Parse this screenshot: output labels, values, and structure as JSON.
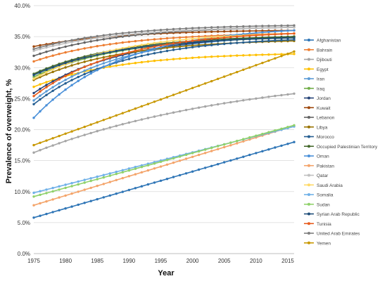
{
  "chart_data": {
    "type": "line",
    "xlabel": "Year",
    "ylabel": "Prevalence of overweight, %",
    "xlim": [
      1975,
      2016
    ],
    "ylim": [
      0,
      40
    ],
    "x_ticks": [
      1975,
      1980,
      1985,
      1990,
      1995,
      2000,
      2005,
      2010,
      2015
    ],
    "y_ticks": [
      "0.0%",
      "5.0%",
      "10.0%",
      "15.0%",
      "20.0%",
      "25.0%",
      "30.0%",
      "35.0%",
      "40.0%"
    ],
    "y_tick_values": [
      0,
      5,
      10,
      15,
      20,
      25,
      30,
      35,
      40
    ],
    "grid": "horizontal",
    "legend_position": "right",
    "series": [
      {
        "name": "Afghanistan",
        "color": "#2e75b6",
        "start": 5.8,
        "end": 18.0,
        "shape": "linear"
      },
      {
        "name": "Bahrain",
        "color": "#ed7d31",
        "start": 31.0,
        "end": 35.5,
        "shape": "saturate"
      },
      {
        "name": "Djibouti",
        "color": "#a5a5a5",
        "start": 16.3,
        "end": 25.8,
        "shape": "concave"
      },
      {
        "name": "Egypt",
        "color": "#ffc000",
        "start": 26.9,
        "end": 32.2,
        "shape": "saturate"
      },
      {
        "name": "Iran",
        "color": "#5b9bd5",
        "start": 24.7,
        "end": 35.0,
        "shape": "saturate"
      },
      {
        "name": "Iraq",
        "color": "#70ad47",
        "start": 28.5,
        "end": 34.8,
        "shape": "saturate"
      },
      {
        "name": "Jordan",
        "color": "#264478",
        "start": 25.9,
        "end": 35.0,
        "shape": "saturate"
      },
      {
        "name": "Kuwait",
        "color": "#9e480e",
        "start": 33.4,
        "end": 36.0,
        "shape": "saturate"
      },
      {
        "name": "Lebanon",
        "color": "#636363",
        "start": 31.9,
        "end": 36.5,
        "shape": "saturate"
      },
      {
        "name": "Libya",
        "color": "#997300",
        "start": 28.0,
        "end": 34.3,
        "shape": "saturate"
      },
      {
        "name": "Morocco",
        "color": "#255e91",
        "start": 24.1,
        "end": 34.5,
        "shape": "saturate"
      },
      {
        "name": "Occupied Palestinian Territory",
        "color": "#43682b",
        "start": 29.0,
        "end": 35.0,
        "shape": "saturate"
      },
      {
        "name": "Oman",
        "color": "#4a90d9",
        "start": 21.9,
        "end": 36.0,
        "shape": "saturate"
      },
      {
        "name": "Pakistan",
        "color": "#f4a46a",
        "start": 7.8,
        "end": 20.6,
        "shape": "linear"
      },
      {
        "name": "Qatar",
        "color": "#bfbfbf",
        "start": 32.7,
        "end": 36.5,
        "shape": "saturate"
      },
      {
        "name": "Saudi Arabia",
        "color": "#ffd966",
        "start": 28.2,
        "end": 35.5,
        "shape": "saturate"
      },
      {
        "name": "Somalia",
        "color": "#6fb0e8",
        "start": 9.8,
        "end": 20.5,
        "shape": "linear"
      },
      {
        "name": "Sudan",
        "color": "#8fd16a",
        "start": 9.2,
        "end": 20.7,
        "shape": "linear"
      },
      {
        "name": "Syrian Arab Republic",
        "color": "#1f4e79",
        "start": 28.8,
        "end": 34.8,
        "shape": "saturate"
      },
      {
        "name": "Tunisia",
        "color": "#e85d1e",
        "start": 25.4,
        "end": 35.5,
        "shape": "saturate"
      },
      {
        "name": "United Arab Emirates",
        "color": "#7f7f7f",
        "start": 33.0,
        "end": 36.8,
        "shape": "saturate"
      },
      {
        "name": "Yemen",
        "color": "#c89800",
        "start": 17.5,
        "end": 32.6,
        "shape": "linear"
      }
    ]
  }
}
